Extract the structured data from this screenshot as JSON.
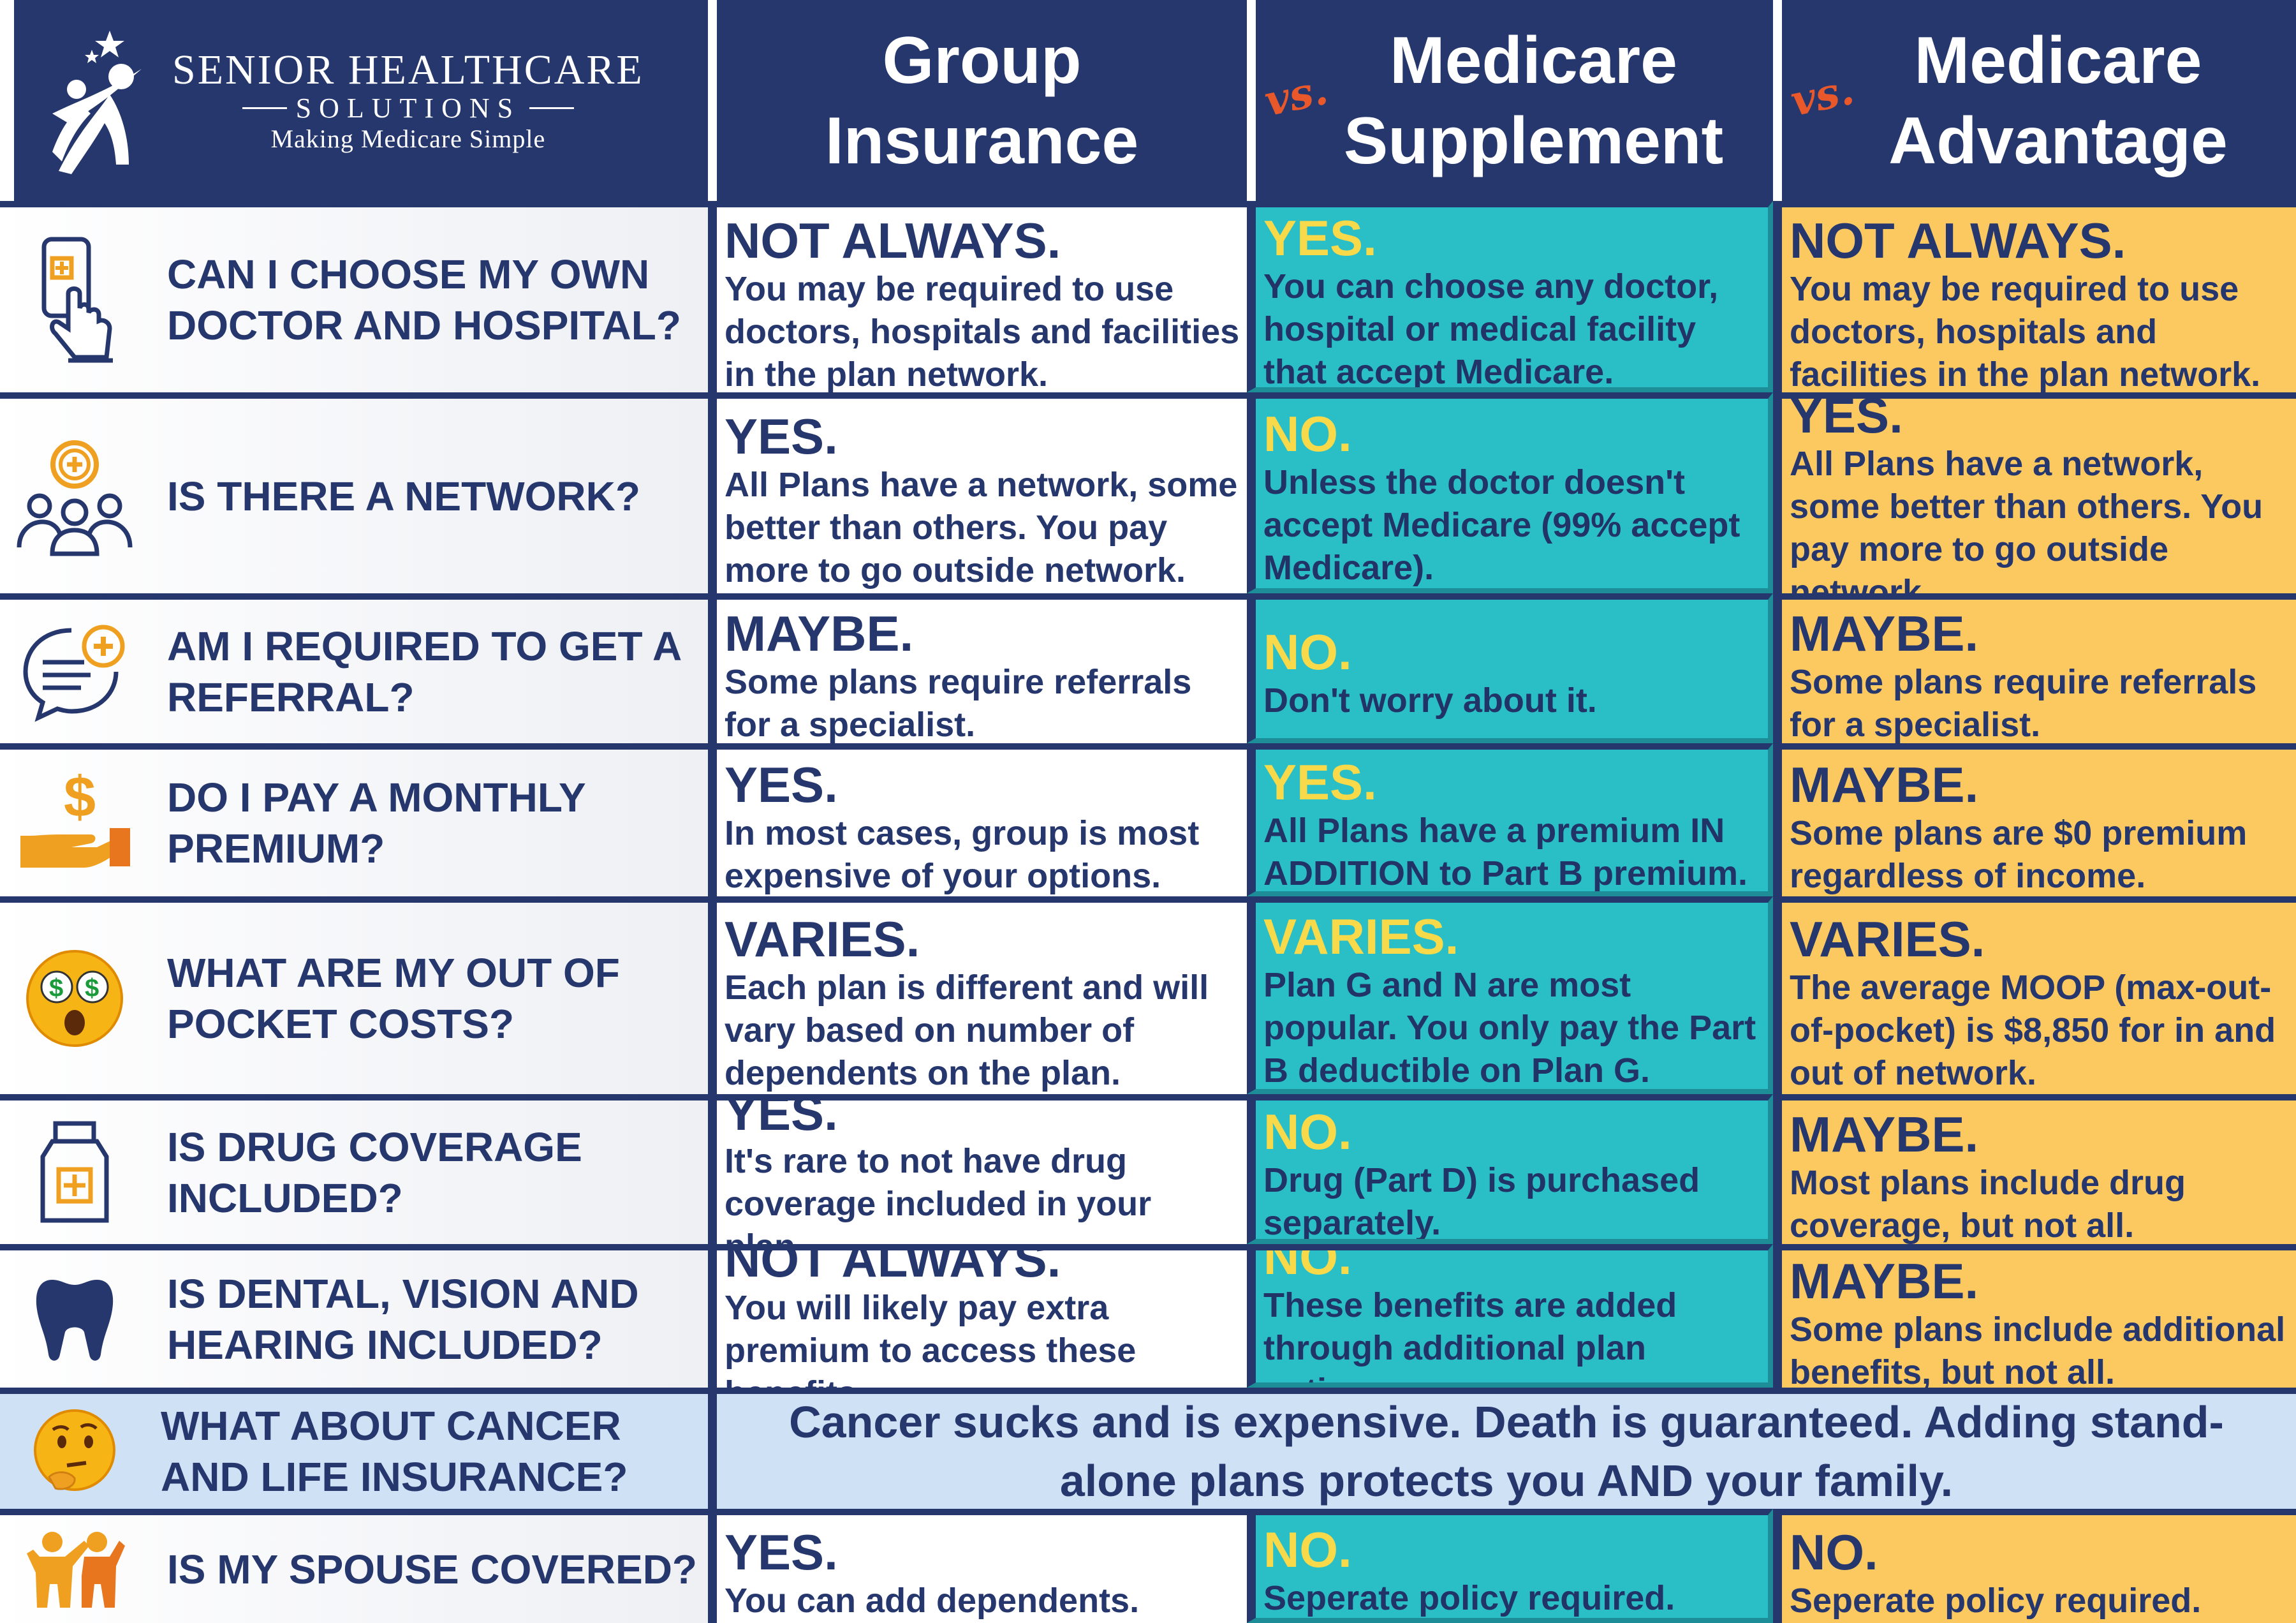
{
  "colors": {
    "navy": "#26376e",
    "teal": "#2abfc7",
    "gold": "#fcc860",
    "yellow_text": "#f7d94a",
    "light_blue": "#cfe1f5",
    "orange": "#e8582a"
  },
  "logo": {
    "name": "SENIOR HEALTHCARE",
    "sub": "SOLUTIONS",
    "tagline": "Making Medicare Simple",
    "icon": "star-figure-logo-icon"
  },
  "columns": [
    {
      "vs": "",
      "title": "Group Insurance"
    },
    {
      "vs": "vs.",
      "title": "Medicare Supplement"
    },
    {
      "vs": "vs.",
      "title": "Medicare Advantage"
    }
  ],
  "rows": [
    {
      "icon": "tap-hand-icon",
      "question": "CAN I CHOOSE MY OWN DOCTOR AND HOSPITAL?",
      "group": {
        "verdict": "NOT ALWAYS.",
        "text": "You may be required to use doctors, hospitals and facilities in the plan network."
      },
      "supplement": {
        "verdict": "YES.",
        "text": "You can choose any doctor, hospital or medical facility that accept Medicare."
      },
      "advantage": {
        "verdict": "NOT ALWAYS.",
        "text": "You may be required to use doctors, hospitals and facilities in the plan network."
      }
    },
    {
      "icon": "people-network-icon",
      "question": "IS THERE A NETWORK?",
      "group": {
        "verdict": "YES.",
        "text": "All Plans have a network, some better than others. You pay more to go outside network."
      },
      "supplement": {
        "verdict": "NO.",
        "text": "Unless the doctor doesn't accept Medicare (99% accept Medicare)."
      },
      "advantage": {
        "verdict": "YES.",
        "text": "All Plans have a network, some better than others. You pay more to go outside network."
      }
    },
    {
      "icon": "medical-chat-icon",
      "question": "AM I REQUIRED TO GET A REFERRAL?",
      "group": {
        "verdict": "MAYBE.",
        "text": "Some plans require referrals for a specialist."
      },
      "supplement": {
        "verdict": "NO.",
        "text": "Don't worry about it."
      },
      "advantage": {
        "verdict": "MAYBE.",
        "text": "Some plans require referrals for a specialist."
      }
    },
    {
      "icon": "hand-dollar-icon",
      "question": "DO I PAY A MONTHLY PREMIUM?",
      "group": {
        "verdict": "YES.",
        "text": "In most cases, group is most expensive of your options."
      },
      "supplement": {
        "verdict": "YES.",
        "text": "All Plans have a premium IN ADDITION to Part B premium."
      },
      "advantage": {
        "verdict": "MAYBE.",
        "text": "Some plans are $0 premium regardless of income."
      }
    },
    {
      "icon": "money-eyes-emoji-icon",
      "question": "WHAT ARE MY OUT OF POCKET COSTS?",
      "group": {
        "verdict": "VARIES.",
        "text": "Each plan is different and will vary based on number of dependents on the plan."
      },
      "supplement": {
        "verdict": "VARIES.",
        "text": "Plan G and N are most popular. You only pay the Part B deductible on Plan G."
      },
      "advantage": {
        "verdict": "VARIES.",
        "text": "The average MOOP (max-out-of-pocket) is $8,850 for in and out of network."
      }
    },
    {
      "icon": "medicine-bottle-icon",
      "question": "IS DRUG COVERAGE INCLUDED?",
      "group": {
        "verdict": "YES.",
        "text": "It's rare to not have drug coverage included in your plan."
      },
      "supplement": {
        "verdict": "NO.",
        "text": "Drug (Part D) is purchased separately."
      },
      "advantage": {
        "verdict": "MAYBE.",
        "text": "Most plans include drug coverage, but not all."
      }
    },
    {
      "icon": "tooth-icon",
      "question": "IS DENTAL, VISION AND HEARING INCLUDED?",
      "group": {
        "verdict": "NOT ALWAYS.",
        "text": "You will likely pay extra premium to access these benefits."
      },
      "supplement": {
        "verdict": "NO.",
        "text": "These benefits are added through additional plan options."
      },
      "advantage": {
        "verdict": "MAYBE.",
        "text": "Some plans include additional benefits, but not all."
      }
    }
  ],
  "cancer_row": {
    "icon": "thinking-emoji-icon",
    "question": "WHAT ABOUT CANCER AND LIFE INSURANCE?",
    "answer": "Cancer sucks and is expensive. Death is guaranteed. Adding stand-alone plans protects you AND your family."
  },
  "spouse_row": {
    "icon": "couple-icon",
    "question": "IS MY SPOUSE COVERED?",
    "group": {
      "verdict": "YES.",
      "text": "You can add dependents."
    },
    "supplement": {
      "verdict": "NO.",
      "text": "Seperate policy required."
    },
    "advantage": {
      "verdict": "NO.",
      "text": "Seperate policy required."
    }
  }
}
